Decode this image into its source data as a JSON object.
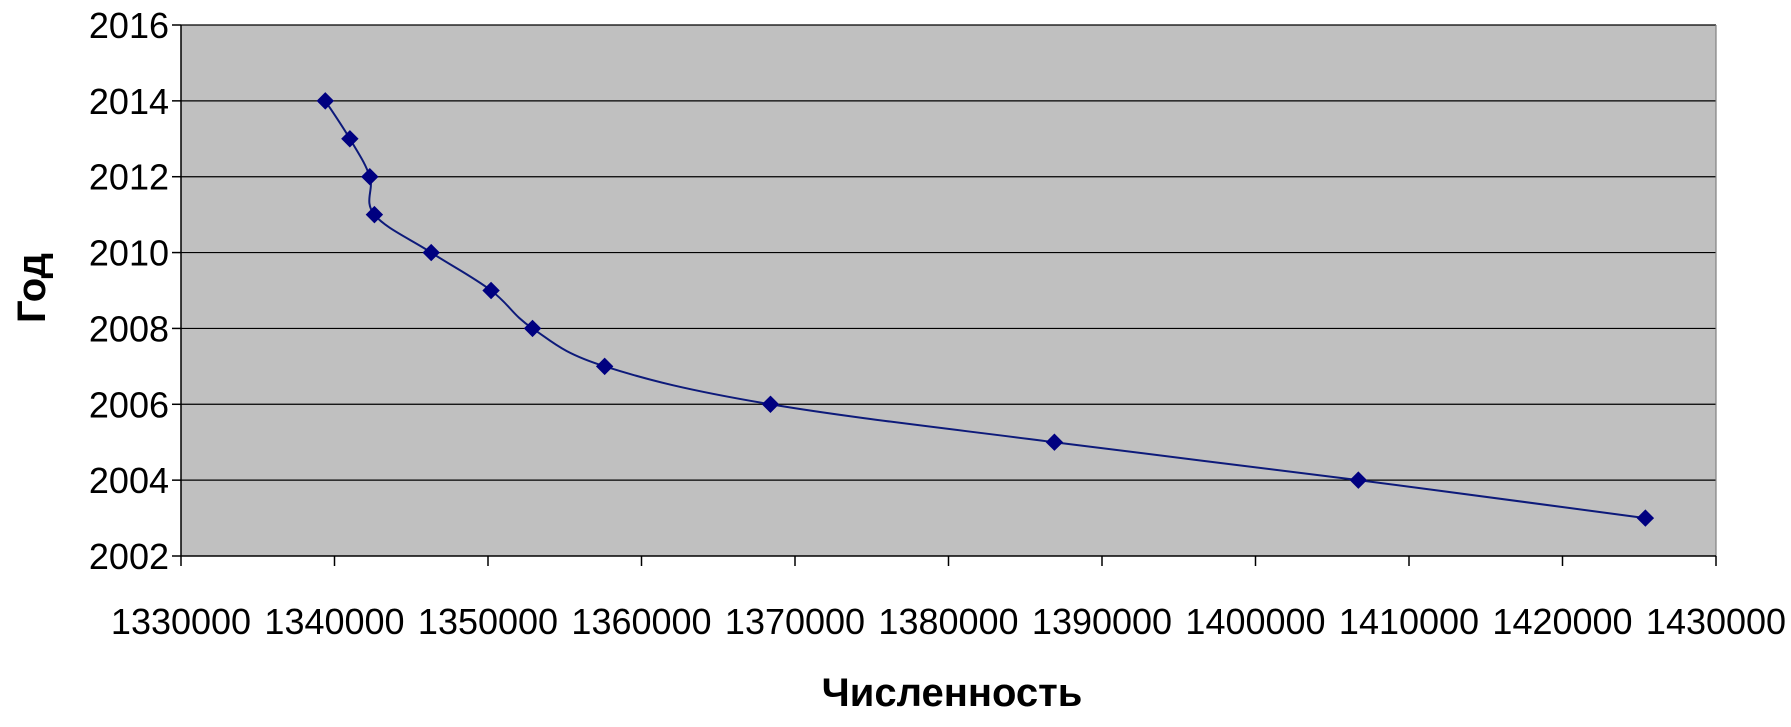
{
  "chart_data": {
    "type": "line",
    "title": "",
    "xlabel": "Численность",
    "ylabel": "Год",
    "xlim": [
      1330000,
      1430000
    ],
    "ylim": [
      2002,
      2016
    ],
    "x_ticks": [
      1330000,
      1340000,
      1350000,
      1360000,
      1370000,
      1380000,
      1390000,
      1400000,
      1410000,
      1420000,
      1430000
    ],
    "y_ticks": [
      2002,
      2004,
      2006,
      2008,
      2010,
      2012,
      2014,
      2016
    ],
    "x_tick_labels": [
      "1330000",
      "1340000",
      "1350000",
      "1360000",
      "1370000",
      "1380000",
      "1390000",
      "1400000",
      "1410000",
      "1420000",
      "1430000"
    ],
    "y_tick_labels": [
      "2002",
      "2004",
      "2006",
      "2008",
      "2010",
      "2012",
      "2014",
      "2016"
    ],
    "grid": "horizontal",
    "legend": "none",
    "colors": {
      "plot_background": "#c0c0c0",
      "line": "#0d1a7a",
      "marker": "#000080",
      "gridline": "#000000",
      "axis": "#000000"
    },
    "marker": "diamond",
    "series": [
      {
        "x": [
          1425400,
          1406700,
          1386900,
          1368400,
          1357600,
          1352900,
          1350200,
          1346300,
          1342600,
          1342300,
          1341000,
          1339400
        ],
        "y": [
          2003,
          2004,
          2005,
          2006,
          2007,
          2008,
          2009,
          2010,
          2011,
          2012,
          2013,
          2014
        ]
      }
    ]
  }
}
